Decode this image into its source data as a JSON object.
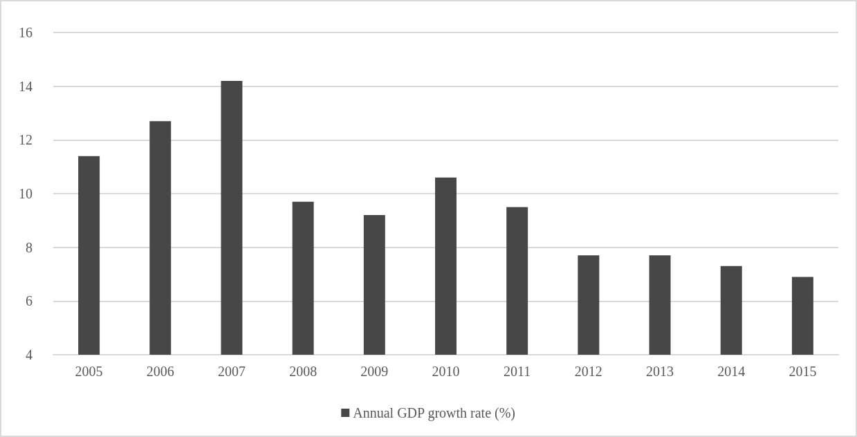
{
  "chart_data": {
    "type": "bar",
    "categories": [
      "2005",
      "2006",
      "2007",
      "2008",
      "2009",
      "2010",
      "2011",
      "2012",
      "2013",
      "2014",
      "2015"
    ],
    "series": [
      {
        "name": "Annual GDP growth rate (%)",
        "color": "#474747",
        "values": [
          11.4,
          12.7,
          14.2,
          9.7,
          9.2,
          10.6,
          9.5,
          7.7,
          7.7,
          7.3,
          6.9
        ]
      }
    ],
    "ylim": [
      4,
      16
    ],
    "yticks": [
      4,
      6,
      8,
      10,
      12,
      14,
      16
    ],
    "grid": "y",
    "legend": "bottom"
  }
}
